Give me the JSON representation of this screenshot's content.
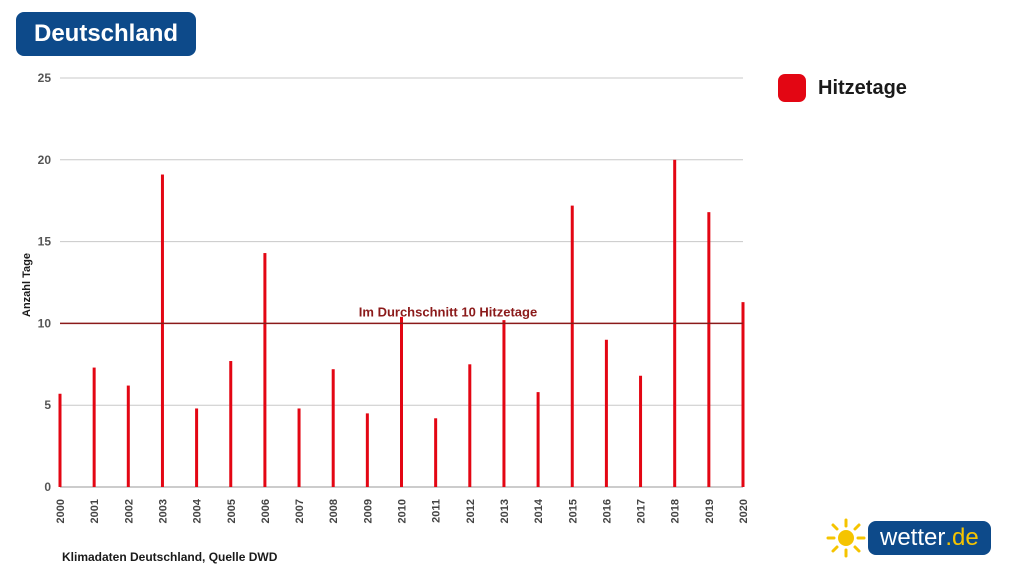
{
  "header": {
    "region": "Deutschland"
  },
  "legend": {
    "label": "Hitzetage",
    "color": "#e30613"
  },
  "source": "Klimadaten Deutschland, Quelle DWD",
  "logo": {
    "name": "wetter",
    "tld": ".de"
  },
  "chart_data": {
    "type": "bar",
    "ylabel": "Anzahl Tage",
    "ylim": [
      0,
      25
    ],
    "yticks": [
      0,
      5,
      10,
      15,
      20,
      25
    ],
    "grid": true,
    "legend_position": "top-right",
    "bar_color": "#e30613",
    "categories": [
      "2000",
      "2001",
      "2002",
      "2003",
      "2004",
      "2005",
      "2006",
      "2007",
      "2008",
      "2009",
      "2010",
      "2011",
      "2012",
      "2013",
      "2014",
      "2015",
      "2016",
      "2017",
      "2018",
      "2019",
      "2020"
    ],
    "series": [
      {
        "name": "Hitzetage",
        "values": [
          5.7,
          7.3,
          6.2,
          19.1,
          4.8,
          7.7,
          14.3,
          4.8,
          7.2,
          4.5,
          10.4,
          4.2,
          7.5,
          10.2,
          5.8,
          17.2,
          9.0,
          6.8,
          20.0,
          16.8,
          11.3
        ]
      }
    ],
    "reference_line": {
      "value": 10,
      "label": "Im Durchschnitt 10 Hitzetage",
      "color": "#8b1a1a"
    }
  }
}
